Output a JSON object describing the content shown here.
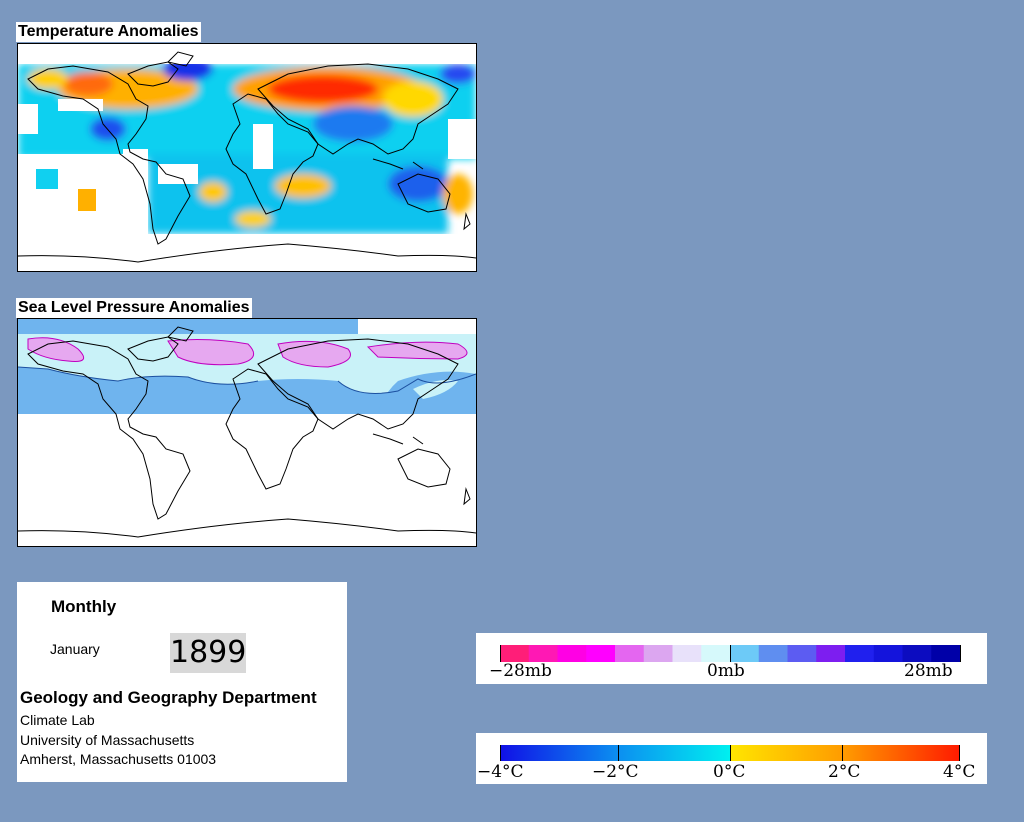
{
  "maps": {
    "temperature": {
      "title": "Temperature Anomalies"
    },
    "pressure": {
      "title": "Sea Level Pressure Anomalies"
    }
  },
  "info": {
    "frequency": "Monthly",
    "month": "January",
    "year": "1899",
    "department": "Geology and Geography Department",
    "lab": "Climate Lab",
    "university": "University of Massachusetts",
    "address": "Amherst, Massachusetts 01003"
  },
  "chart_data": [
    {
      "type": "colorbar",
      "variable": "sea level pressure anomaly",
      "range": [
        -28,
        28
      ],
      "tick_labels": [
        "−28mb",
        "0mb",
        "28mb"
      ],
      "colors": [
        "#ff1e78",
        "#ff18b4",
        "#ff00e4",
        "#ff00ff",
        "#e466f0",
        "#dca6f0",
        "#e8e1fa",
        "#d6f9fb",
        "#6dcaf7",
        "#5f8ef0",
        "#5c5cf2",
        "#7d1ef0",
        "#2020ee",
        "#1414dc",
        "#0c0cc0",
        "#0000a8"
      ]
    },
    {
      "type": "colorbar",
      "variable": "temperature anomaly",
      "range": [
        -4,
        4
      ],
      "tick_labels": [
        "−4°C",
        "−2°C",
        "0°C",
        "2°C",
        "4°C"
      ]
    }
  ]
}
